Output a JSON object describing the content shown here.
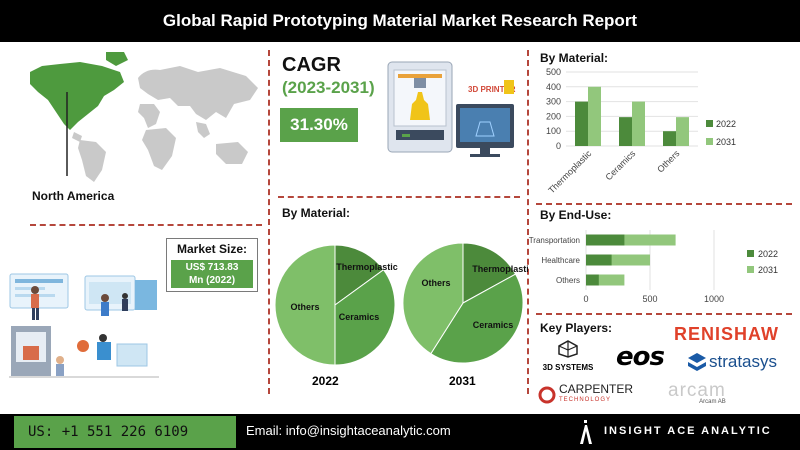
{
  "report_title": "Global Rapid Prototyping Material Market Research Report",
  "region": {
    "label": "North America"
  },
  "market_size": {
    "title": "Market Size:",
    "value_line1": "US$ 713.83",
    "value_line2": "Mn (2022)"
  },
  "cagr": {
    "label": "CAGR",
    "years": "(2023-2031)",
    "value": "31.30%"
  },
  "printer_screen_text": "3D PRINTER",
  "colors": {
    "dark_green": "#4c8a3b",
    "mid_green": "#5aa24a",
    "light_green": "#92c77c",
    "pie_light": "#7fbf69",
    "divider": "#b5473c"
  },
  "pie_section": {
    "title": "By Material:",
    "charts": [
      {
        "year": "2022",
        "labels": [
          "Thermoplastic",
          "Ceramics",
          "Others"
        ]
      },
      {
        "year": "2031",
        "labels": [
          "Thermoplastic",
          "Ceramics",
          "Others"
        ]
      }
    ]
  },
  "chart_data": [
    {
      "type": "pie",
      "title": "2022",
      "categories": [
        "Thermoplastic",
        "Ceramics",
        "Others"
      ],
      "values": [
        15,
        35,
        50
      ],
      "colors": [
        "#4c8a3b",
        "#5aa24a",
        "#7fbf69"
      ]
    },
    {
      "type": "pie",
      "title": "2031",
      "categories": [
        "Thermoplastic",
        "Ceramics",
        "Others"
      ],
      "values": [
        17,
        42,
        41
      ],
      "colors": [
        "#4c8a3b",
        "#5aa24a",
        "#7fbf69"
      ]
    },
    {
      "type": "bar",
      "title": "By Material:",
      "categories": [
        "Thermoplastic",
        "Ceramics",
        "Others"
      ],
      "series": [
        {
          "name": "2022",
          "values": [
            300,
            195,
            100
          ],
          "color": "#4c8a3b"
        },
        {
          "name": "2031",
          "values": [
            400,
            300,
            195
          ],
          "color": "#92c77c"
        }
      ],
      "ylim": [
        0,
        500
      ],
      "yticks": [
        "0",
        "100",
        "200",
        "300",
        "400",
        "500"
      ],
      "legend": "right"
    },
    {
      "type": "bar",
      "orientation": "horizontal",
      "title": "By End-Use:",
      "categories": [
        "Transportation",
        "Healthcare",
        "Others"
      ],
      "series": [
        {
          "name": "2022",
          "values": [
            300,
            200,
            100
          ],
          "color": "#4c8a3b"
        },
        {
          "name": "2031",
          "values": [
            700,
            500,
            300
          ],
          "color": "#92c77c"
        }
      ],
      "xlim": [
        0,
        1000
      ],
      "xticks": [
        "0",
        "500",
        "1000"
      ],
      "legend": "right"
    }
  ],
  "key_players": {
    "title": "Key Players:",
    "companies": [
      "3D SYSTEMS",
      "eos",
      "RENISHAW",
      "stratasys",
      "CARPENTER",
      "TECHNOLOGY",
      "arcam",
      "Arcam AB"
    ]
  },
  "footer": {
    "phone": "US: +1 551 226 6109",
    "email": "Email: info@insightaceanalytic.com",
    "brand": "INSIGHT ACE ANALYTIC"
  }
}
